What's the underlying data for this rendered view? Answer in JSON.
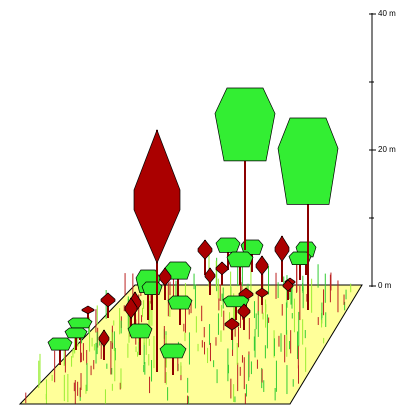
{
  "scale": {
    "labels": [
      "40 m",
      "20 m",
      "0 m"
    ]
  }
}
